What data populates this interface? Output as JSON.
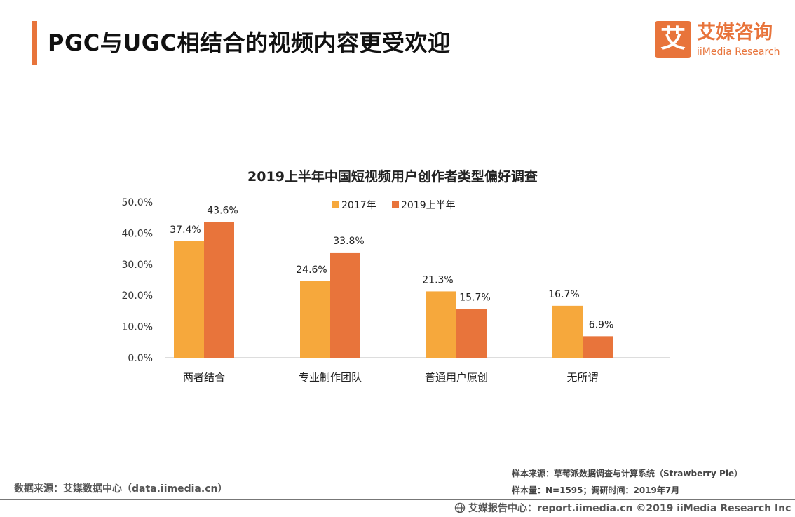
{
  "header": {
    "title": "PGC与UGC相结合的视频内容更受欢迎"
  },
  "logo": {
    "mark": "艾",
    "name_cn": "艾媒咨询",
    "name_en": "iiMedia Research"
  },
  "colors": {
    "accent": "#e8743b",
    "series_2017": "#f6a83c",
    "series_2019": "#e8743b"
  },
  "chart_data": {
    "type": "bar",
    "title": "2019上半年中国短视频用户创作者类型偏好调查",
    "categories": [
      "两者结合",
      "专业制作团队",
      "普通用户原创",
      "无所谓"
    ],
    "series": [
      {
        "name": "2017年",
        "values": [
          37.4,
          24.6,
          21.3,
          16.7
        ]
      },
      {
        "name": "2019上半年",
        "values": [
          43.6,
          33.8,
          15.7,
          6.9
        ]
      }
    ],
    "yticks": [
      "0.0%",
      "10.0%",
      "20.0%",
      "30.0%",
      "40.0%",
      "50.0%"
    ],
    "ylim": [
      0,
      50
    ],
    "value_suffix": "%",
    "legend_position": "top-center",
    "xlabel": "",
    "ylabel": ""
  },
  "footer": {
    "data_source": "数据来源：艾媒数据中心（data.iimedia.cn）",
    "sample_source": "样本来源：草莓派数据调查与计算系统（Strawberry Pie）",
    "sample_size": "样本量：N=1595；调研时间：2019年7月",
    "copyright": "艾媒报告中心：report.iimedia.cn   ©2019  iiMedia Research  Inc"
  }
}
